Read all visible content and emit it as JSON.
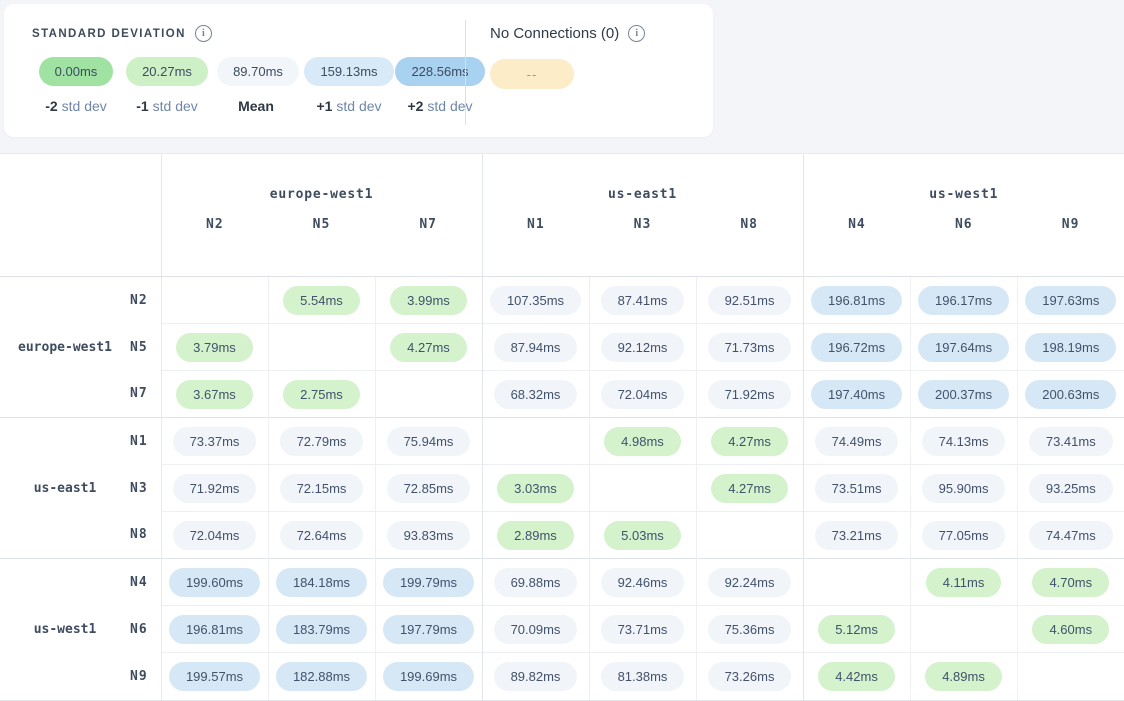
{
  "legend": {
    "title": "STANDARD DEVIATION",
    "info_tooltip_icon": "info-icon",
    "items": [
      {
        "value": "0.00ms",
        "label_bold": "-2",
        "label_rest": "std dev",
        "color": "#9fe2a2"
      },
      {
        "value": "20.27ms",
        "label_bold": "-1",
        "label_rest": "std dev",
        "color": "#cdf0c6"
      },
      {
        "value": "89.70ms",
        "label_bold": "Mean",
        "label_rest": "",
        "color": "#f2f5f9"
      },
      {
        "value": "159.13ms",
        "label_bold": "+1",
        "label_rest": "std dev",
        "color": "#d8e9f7"
      },
      {
        "value": "228.56ms",
        "label_bold": "+2",
        "label_rest": "std dev",
        "color": "#a9d2f0"
      }
    ]
  },
  "no_connections": {
    "title": "No Connections (0)",
    "badge": "--",
    "color": "#fcecc7"
  },
  "icons": {
    "info": "i"
  },
  "colors": {
    "page_background": "#f3f5f8",
    "panel_background": "#ffffff",
    "tier_green": "#d4f2cc",
    "tier_neutral": "#f1f4f8",
    "tier_blue": "#d6e8f6"
  },
  "matrix": {
    "unit": "ms",
    "columns": [
      {
        "region": "europe-west1",
        "nodes": [
          "N2",
          "N5",
          "N7"
        ]
      },
      {
        "region": "us-east1",
        "nodes": [
          "N1",
          "N3",
          "N8"
        ]
      },
      {
        "region": "us-west1",
        "nodes": [
          "N4",
          "N6",
          "N9"
        ]
      }
    ],
    "rows": [
      {
        "region": "europe-west1",
        "nodes": [
          {
            "node": "N2",
            "cells": [
              null,
              [
                "5.54ms",
                "g"
              ],
              [
                "3.99ms",
                "g"
              ],
              [
                "107.35ms",
                "n"
              ],
              [
                "87.41ms",
                "n"
              ],
              [
                "92.51ms",
                "n"
              ],
              [
                "196.81ms",
                "b"
              ],
              [
                "196.17ms",
                "b"
              ],
              [
                "197.63ms",
                "b"
              ]
            ]
          },
          {
            "node": "N5",
            "cells": [
              [
                "3.79ms",
                "g"
              ],
              null,
              [
                "4.27ms",
                "g"
              ],
              [
                "87.94ms",
                "n"
              ],
              [
                "92.12ms",
                "n"
              ],
              [
                "71.73ms",
                "n"
              ],
              [
                "196.72ms",
                "b"
              ],
              [
                "197.64ms",
                "b"
              ],
              [
                "198.19ms",
                "b"
              ]
            ]
          },
          {
            "node": "N7",
            "cells": [
              [
                "3.67ms",
                "g"
              ],
              [
                "2.75ms",
                "g"
              ],
              null,
              [
                "68.32ms",
                "n"
              ],
              [
                "72.04ms",
                "n"
              ],
              [
                "71.92ms",
                "n"
              ],
              [
                "197.40ms",
                "b"
              ],
              [
                "200.37ms",
                "b"
              ],
              [
                "200.63ms",
                "b"
              ]
            ]
          }
        ]
      },
      {
        "region": "us-east1",
        "nodes": [
          {
            "node": "N1",
            "cells": [
              [
                "73.37ms",
                "n"
              ],
              [
                "72.79ms",
                "n"
              ],
              [
                "75.94ms",
                "n"
              ],
              null,
              [
                "4.98ms",
                "g"
              ],
              [
                "4.27ms",
                "g"
              ],
              [
                "74.49ms",
                "n"
              ],
              [
                "74.13ms",
                "n"
              ],
              [
                "73.41ms",
                "n"
              ]
            ]
          },
          {
            "node": "N3",
            "cells": [
              [
                "71.92ms",
                "n"
              ],
              [
                "72.15ms",
                "n"
              ],
              [
                "72.85ms",
                "n"
              ],
              [
                "3.03ms",
                "g"
              ],
              null,
              [
                "4.27ms",
                "g"
              ],
              [
                "73.51ms",
                "n"
              ],
              [
                "95.90ms",
                "n"
              ],
              [
                "93.25ms",
                "n"
              ]
            ]
          },
          {
            "node": "N8",
            "cells": [
              [
                "72.04ms",
                "n"
              ],
              [
                "72.64ms",
                "n"
              ],
              [
                "93.83ms",
                "n"
              ],
              [
                "2.89ms",
                "g"
              ],
              [
                "5.03ms",
                "g"
              ],
              null,
              [
                "73.21ms",
                "n"
              ],
              [
                "77.05ms",
                "n"
              ],
              [
                "74.47ms",
                "n"
              ]
            ]
          }
        ]
      },
      {
        "region": "us-west1",
        "nodes": [
          {
            "node": "N4",
            "cells": [
              [
                "199.60ms",
                "b"
              ],
              [
                "184.18ms",
                "b"
              ],
              [
                "199.79ms",
                "b"
              ],
              [
                "69.88ms",
                "n"
              ],
              [
                "92.46ms",
                "n"
              ],
              [
                "92.24ms",
                "n"
              ],
              null,
              [
                "4.11ms",
                "g"
              ],
              [
                "4.70ms",
                "g"
              ]
            ]
          },
          {
            "node": "N6",
            "cells": [
              [
                "196.81ms",
                "b"
              ],
              [
                "183.79ms",
                "b"
              ],
              [
                "197.79ms",
                "b"
              ],
              [
                "70.09ms",
                "n"
              ],
              [
                "73.71ms",
                "n"
              ],
              [
                "75.36ms",
                "n"
              ],
              [
                "5.12ms",
                "g"
              ],
              null,
              [
                "4.60ms",
                "g"
              ]
            ]
          },
          {
            "node": "N9",
            "cells": [
              [
                "199.57ms",
                "b"
              ],
              [
                "182.88ms",
                "b"
              ],
              [
                "199.69ms",
                "b"
              ],
              [
                "89.82ms",
                "n"
              ],
              [
                "81.38ms",
                "n"
              ],
              [
                "73.26ms",
                "n"
              ],
              [
                "4.42ms",
                "g"
              ],
              [
                "4.89ms",
                "g"
              ],
              null
            ]
          }
        ]
      }
    ]
  }
}
